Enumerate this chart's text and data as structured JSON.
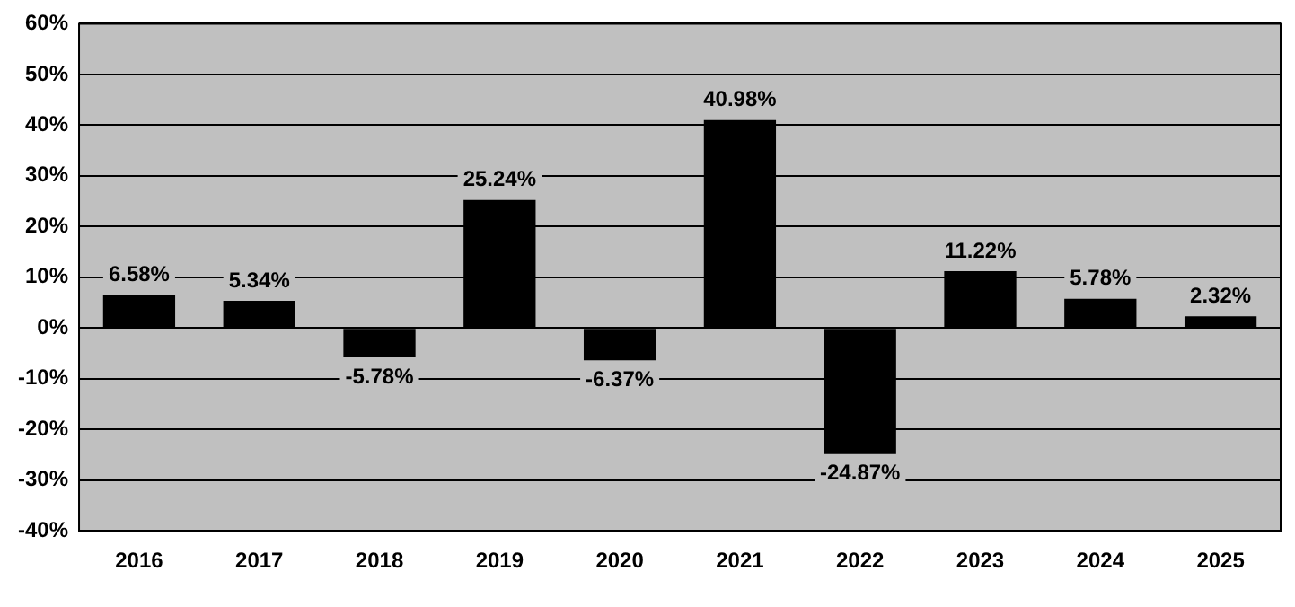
{
  "chart_data": {
    "type": "bar",
    "categories": [
      "2016",
      "2017",
      "2018",
      "2019",
      "2020",
      "2021",
      "2022",
      "2023",
      "2024",
      "2025"
    ],
    "values": [
      6.58,
      5.34,
      -5.78,
      25.24,
      -6.37,
      40.98,
      -24.87,
      11.22,
      5.78,
      2.32
    ],
    "value_labels": [
      "6.58%",
      "5.34%",
      "-5.78%",
      "25.24%",
      "-6.37%",
      "40.98%",
      "-24.87%",
      "11.22%",
      "5.78%",
      "2.32%"
    ],
    "color": "#000000",
    "ylim": [
      -40,
      60
    ],
    "yticks": [
      {
        "value": -40,
        "label": "-40%"
      },
      {
        "value": -30,
        "label": "-30%"
      },
      {
        "value": -20,
        "label": "-20%"
      },
      {
        "value": -10,
        "label": "-10%"
      },
      {
        "value": 0,
        "label": "0%"
      },
      {
        "value": 10,
        "label": "10%"
      },
      {
        "value": 20,
        "label": "20%"
      },
      {
        "value": 30,
        "label": "30%"
      },
      {
        "value": 40,
        "label": "40%"
      },
      {
        "value": 50,
        "label": "50%"
      },
      {
        "value": 60,
        "label": "60%"
      }
    ],
    "grid": "y",
    "legend": false
  }
}
